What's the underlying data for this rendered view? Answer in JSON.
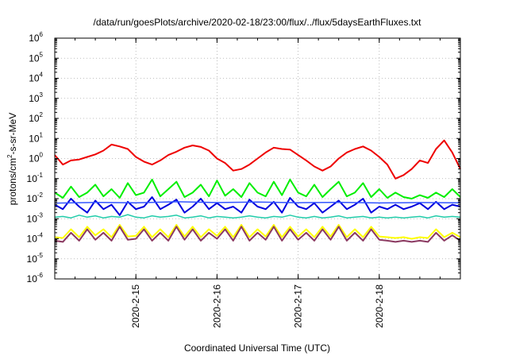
{
  "chart_data": {
    "type": "line",
    "title": "/data/run/goesPlots/archive/2020-02-18/23:00/flux/../flux/5daysEarthFluxes.txt",
    "xlabel": "Coordinated Universal Time (UTC)",
    "ylabel": "protons/cm²-s-sr-MeV",
    "ylabel_base": "protons/cm",
    "ylabel_sup": "2",
    "ylabel_rest": "-s-sr-MeV",
    "y_scale": "log",
    "ylim": [
      1e-06,
      1000000.0
    ],
    "xlim_days": [
      14.0,
      19.0
    ],
    "x_ticks": [
      {
        "day": 15,
        "label": "2020-2-15"
      },
      {
        "day": 16,
        "label": "2020-2-16"
      },
      {
        "day": 17,
        "label": "2020-2-17"
      },
      {
        "day": 18,
        "label": "2020-2-18"
      }
    ],
    "y_ticks": [
      {
        "exp": -6,
        "base": "10",
        "sup": "-6"
      },
      {
        "exp": -5,
        "base": "10",
        "sup": "-5"
      },
      {
        "exp": -4,
        "base": "10",
        "sup": "-4"
      },
      {
        "exp": -3,
        "base": "10",
        "sup": "-3"
      },
      {
        "exp": -2,
        "base": "10",
        "sup": "-2"
      },
      {
        "exp": -1,
        "base": "10",
        "sup": "-1"
      },
      {
        "exp": 0,
        "base": "10",
        "sup": "0"
      },
      {
        "exp": 1,
        "base": "10",
        "sup": "1"
      },
      {
        "exp": 2,
        "base": "10",
        "sup": "2"
      },
      {
        "exp": 3,
        "base": "10",
        "sup": "3"
      },
      {
        "exp": 4,
        "base": "10",
        "sup": "4"
      },
      {
        "exp": 5,
        "base": "10",
        "sup": "5"
      },
      {
        "exp": 6,
        "base": "10",
        "sup": "6"
      }
    ],
    "grid": true,
    "series": [
      {
        "color": "#ee0000",
        "width": 2,
        "x": [
          14.0,
          14.1,
          14.2,
          14.3,
          14.4,
          14.5,
          14.6,
          14.7,
          14.8,
          14.9,
          15.0,
          15.1,
          15.2,
          15.3,
          15.4,
          15.5,
          15.6,
          15.7,
          15.8,
          15.9,
          16.0,
          16.1,
          16.2,
          16.3,
          16.4,
          16.5,
          16.6,
          16.7,
          16.8,
          16.9,
          17.0,
          17.1,
          17.2,
          17.3,
          17.4,
          17.5,
          17.6,
          17.7,
          17.8,
          17.9,
          18.0,
          18.1,
          18.2,
          18.3,
          18.4,
          18.5,
          18.6,
          18.7,
          18.8,
          18.9,
          19.0
        ],
        "y": [
          1.5,
          0.5,
          0.8,
          0.9,
          1.2,
          1.6,
          2.5,
          5.0,
          4.0,
          3.0,
          1.2,
          0.7,
          0.5,
          0.8,
          1.5,
          2.2,
          3.5,
          4.5,
          3.8,
          2.5,
          1.0,
          0.6,
          0.25,
          0.3,
          0.5,
          1.0,
          2.0,
          3.5,
          3.0,
          2.8,
          1.5,
          0.8,
          0.4,
          0.25,
          0.4,
          1.0,
          2.0,
          3.0,
          4.0,
          2.5,
          1.2,
          0.5,
          0.1,
          0.15,
          0.3,
          0.8,
          0.6,
          3.0,
          8.0,
          2.0,
          0.3
        ]
      },
      {
        "color": "#00ee00",
        "width": 2,
        "x": [
          14.0,
          14.1,
          14.2,
          14.3,
          14.4,
          14.5,
          14.6,
          14.7,
          14.8,
          14.9,
          15.0,
          15.1,
          15.2,
          15.3,
          15.4,
          15.5,
          15.6,
          15.7,
          15.8,
          15.9,
          16.0,
          16.1,
          16.2,
          16.3,
          16.4,
          16.5,
          16.6,
          16.7,
          16.8,
          16.9,
          17.0,
          17.1,
          17.2,
          17.3,
          17.4,
          17.5,
          17.6,
          17.7,
          17.8,
          17.9,
          18.0,
          18.1,
          18.2,
          18.3,
          18.4,
          18.5,
          18.6,
          18.7,
          18.8,
          18.9,
          19.0
        ],
        "y": [
          0.02,
          0.011,
          0.04,
          0.012,
          0.02,
          0.05,
          0.013,
          0.03,
          0.011,
          0.06,
          0.015,
          0.02,
          0.09,
          0.013,
          0.03,
          0.07,
          0.012,
          0.02,
          0.05,
          0.013,
          0.08,
          0.014,
          0.03,
          0.012,
          0.06,
          0.02,
          0.013,
          0.07,
          0.015,
          0.09,
          0.02,
          0.013,
          0.05,
          0.012,
          0.03,
          0.07,
          0.013,
          0.02,
          0.06,
          0.012,
          0.03,
          0.011,
          0.02,
          0.012,
          0.01,
          0.015,
          0.011,
          0.02,
          0.012,
          0.03,
          0.012
        ]
      },
      {
        "color": "#0000dd",
        "width": 2,
        "x": [
          14.0,
          14.1,
          14.2,
          14.3,
          14.4,
          14.5,
          14.6,
          14.7,
          14.8,
          14.9,
          15.0,
          15.1,
          15.2,
          15.3,
          15.4,
          15.5,
          15.6,
          15.7,
          15.8,
          15.9,
          16.0,
          16.1,
          16.2,
          16.3,
          16.4,
          16.5,
          16.6,
          16.7,
          16.8,
          16.9,
          17.0,
          17.1,
          17.2,
          17.3,
          17.4,
          17.5,
          17.6,
          17.7,
          17.8,
          17.9,
          18.0,
          18.1,
          18.2,
          18.3,
          18.4,
          18.5,
          18.6,
          18.7,
          18.8,
          18.9,
          19.0
        ],
        "y": [
          0.005,
          0.003,
          0.01,
          0.004,
          0.002,
          0.008,
          0.003,
          0.005,
          0.0015,
          0.007,
          0.003,
          0.004,
          0.012,
          0.003,
          0.005,
          0.009,
          0.002,
          0.004,
          0.01,
          0.003,
          0.006,
          0.003,
          0.004,
          0.002,
          0.009,
          0.004,
          0.003,
          0.007,
          0.002,
          0.011,
          0.004,
          0.003,
          0.006,
          0.002,
          0.004,
          0.008,
          0.003,
          0.005,
          0.01,
          0.002,
          0.004,
          0.003,
          0.005,
          0.003,
          0.004,
          0.006,
          0.003,
          0.007,
          0.003,
          0.005,
          0.004
        ]
      },
      {
        "color": "#3355ff",
        "width": 1.5,
        "x": [
          14.0,
          14.5,
          15.0,
          15.5,
          16.0,
          16.5,
          17.0,
          17.5,
          18.0,
          18.5,
          19.0
        ],
        "y": [
          0.006,
          0.0065,
          0.0062,
          0.007,
          0.0064,
          0.0068,
          0.0063,
          0.0066,
          0.0061,
          0.0064,
          0.0062
        ]
      },
      {
        "color": "#22ccaa",
        "width": 1.5,
        "x": [
          14.0,
          14.1,
          14.2,
          14.3,
          14.4,
          14.5,
          14.6,
          14.7,
          14.8,
          14.9,
          15.0,
          15.1,
          15.2,
          15.3,
          15.4,
          15.5,
          15.6,
          15.7,
          15.8,
          15.9,
          16.0,
          16.1,
          16.2,
          16.3,
          16.4,
          16.5,
          16.6,
          16.7,
          16.8,
          16.9,
          17.0,
          17.1,
          17.2,
          17.3,
          17.4,
          17.5,
          17.6,
          17.7,
          17.8,
          17.9,
          18.0,
          18.1,
          18.2,
          18.3,
          18.4,
          18.5,
          18.6,
          18.7,
          18.8,
          18.9,
          19.0
        ],
        "y": [
          0.0012,
          0.0013,
          0.0011,
          0.0015,
          0.0012,
          0.0014,
          0.0011,
          0.0013,
          0.0012,
          0.0016,
          0.0012,
          0.0011,
          0.0014,
          0.0012,
          0.0013,
          0.0015,
          0.0011,
          0.0012,
          0.0014,
          0.0011,
          0.0013,
          0.0012,
          0.0011,
          0.0012,
          0.0014,
          0.0012,
          0.0011,
          0.0013,
          0.0012,
          0.0015,
          0.0012,
          0.0011,
          0.0013,
          0.0011,
          0.0012,
          0.0014,
          0.0011,
          0.0012,
          0.0013,
          0.0011,
          0.0012,
          0.0011,
          0.0012,
          0.0011,
          0.0012,
          0.0013,
          0.0011,
          0.0014,
          0.0012,
          0.0013,
          0.0012
        ]
      },
      {
        "color": "#ffff00",
        "width": 2,
        "x": [
          14.0,
          14.1,
          14.2,
          14.3,
          14.4,
          14.5,
          14.6,
          14.7,
          14.8,
          14.9,
          15.0,
          15.1,
          15.2,
          15.3,
          15.4,
          15.5,
          15.6,
          15.7,
          15.8,
          15.9,
          16.0,
          16.1,
          16.2,
          16.3,
          16.4,
          16.5,
          16.6,
          16.7,
          16.8,
          16.9,
          17.0,
          17.1,
          17.2,
          17.3,
          17.4,
          17.5,
          17.6,
          17.7,
          17.8,
          17.9,
          18.0,
          18.1,
          18.2,
          18.3,
          18.4,
          18.5,
          18.6,
          18.7,
          18.8,
          18.9,
          19.0
        ],
        "y": [
          0.00012,
          0.00011,
          0.0003,
          0.00012,
          0.0004,
          0.00015,
          0.0003,
          0.00012,
          0.0005,
          0.00013,
          0.00014,
          0.0004,
          0.00012,
          0.0003,
          0.00012,
          0.0005,
          0.00013,
          0.0004,
          0.00012,
          0.0003,
          0.00014,
          0.0004,
          0.00012,
          0.0005,
          0.00012,
          0.0003,
          0.00013,
          0.0005,
          0.00012,
          0.0004,
          0.00013,
          0.0003,
          0.00012,
          0.0004,
          0.00013,
          0.0005,
          0.00012,
          0.0003,
          0.00012,
          0.0004,
          0.00013,
          0.00012,
          0.00011,
          0.00012,
          0.0001,
          0.00012,
          0.00011,
          0.0003,
          0.00012,
          0.0002,
          0.00012
        ]
      },
      {
        "color": "#8b3a62",
        "width": 2,
        "x": [
          14.0,
          14.1,
          14.2,
          14.3,
          14.4,
          14.5,
          14.6,
          14.7,
          14.8,
          14.9,
          15.0,
          15.1,
          15.2,
          15.3,
          15.4,
          15.5,
          15.6,
          15.7,
          15.8,
          15.9,
          16.0,
          16.1,
          16.2,
          16.3,
          16.4,
          16.5,
          16.6,
          16.7,
          16.8,
          16.9,
          17.0,
          17.1,
          17.2,
          17.3,
          17.4,
          17.5,
          17.6,
          17.7,
          17.8,
          17.9,
          18.0,
          18.1,
          18.2,
          18.3,
          18.4,
          18.5,
          18.6,
          18.7,
          18.8,
          18.9,
          19.0
        ],
        "y": [
          8e-05,
          7e-05,
          0.0002,
          8e-05,
          0.0003,
          9e-05,
          0.0002,
          8e-05,
          0.0004,
          9e-05,
          0.0001,
          0.0003,
          8e-05,
          0.0002,
          8e-05,
          0.0004,
          9e-05,
          0.0003,
          8e-05,
          0.0002,
          0.0001,
          0.0003,
          8e-05,
          0.0004,
          8e-05,
          0.0002,
          9e-05,
          0.0004,
          8e-05,
          0.0003,
          9e-05,
          0.0002,
          8e-05,
          0.0003,
          9e-05,
          0.0004,
          8e-05,
          0.0002,
          8e-05,
          0.0003,
          9e-05,
          8e-05,
          7e-05,
          8e-05,
          7e-05,
          8e-05,
          7e-05,
          0.0002,
          8e-05,
          0.00015,
          8e-05
        ]
      }
    ]
  }
}
